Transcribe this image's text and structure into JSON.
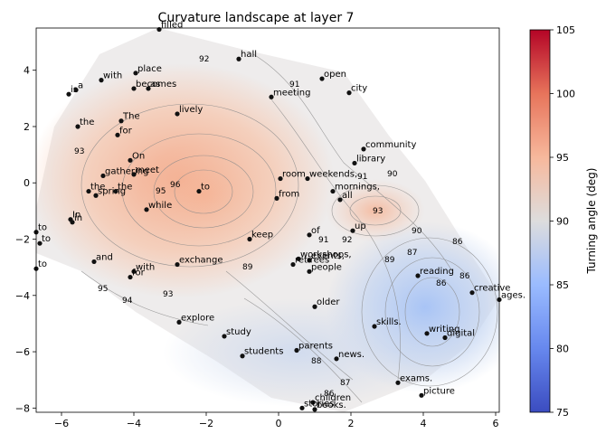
{
  "chart_data": {
    "type": "scatter",
    "title": "Curvature landscape at layer 7",
    "xlabel": "",
    "ylabel": "",
    "xlim": [
      -6.7,
      6.1
    ],
    "ylim": [
      -8.15,
      5.5
    ],
    "x_ticks": [
      -6,
      -4,
      -2,
      0,
      2,
      4,
      6
    ],
    "y_ticks": [
      -8,
      -6,
      -4,
      -2,
      0,
      2,
      4
    ],
    "grid": false,
    "colorbar": {
      "label": "Turning angle (deg)",
      "min": 75,
      "max": 105,
      "ticks": [
        75,
        80,
        85,
        90,
        95,
        100,
        105
      ],
      "colors": [
        "#3b4cc0",
        "#dddddd",
        "#b40426"
      ]
    },
    "contour_levels_printed": [
      "86",
      "87",
      "88",
      "89",
      "90",
      "91",
      "92",
      "93",
      "94",
      "95",
      "96"
    ],
    "points": [
      {
        "label": "filled",
        "x": -3.3,
        "y": 5.45
      },
      {
        "label": "hall",
        "x": -1.1,
        "y": 4.4
      },
      {
        "label": "place",
        "x": -3.95,
        "y": 3.9
      },
      {
        "label": "with",
        "x": -4.9,
        "y": 3.65
      },
      {
        "label": "is",
        "x": -5.8,
        "y": 3.15
      },
      {
        "label": "a",
        "x": -5.6,
        "y": 3.3
      },
      {
        "label": "becomes",
        "x": -4.0,
        "y": 3.35
      },
      {
        "label": "as",
        "x": -3.6,
        "y": 3.35
      },
      {
        "label": "open",
        "x": 1.2,
        "y": 3.7
      },
      {
        "label": "city",
        "x": 1.95,
        "y": 3.2
      },
      {
        "label": "meeting",
        "x": -0.2,
        "y": 3.05
      },
      {
        "label": "lively",
        "x": -2.8,
        "y": 2.45
      },
      {
        "label": "the",
        "x": -5.55,
        "y": 2.0
      },
      {
        "label": "The",
        "x": -4.35,
        "y": 2.2
      },
      {
        "label": "for",
        "x": -4.45,
        "y": 1.7
      },
      {
        "label": "community",
        "x": 2.35,
        "y": 1.2
      },
      {
        "label": "On",
        "x": -4.1,
        "y": 0.8
      },
      {
        "label": "library",
        "x": 2.1,
        "y": 0.7
      },
      {
        "label": "gathering",
        "x": -4.85,
        "y": 0.25
      },
      {
        "label": "meet",
        "x": -4.0,
        "y": 0.3
      },
      {
        "label": "room",
        "x": 0.05,
        "y": 0.15
      },
      {
        "label": "weekends,",
        "x": 0.8,
        "y": 0.15
      },
      {
        "label": "to",
        "x": -2.2,
        "y": -0.3
      },
      {
        "label": "the",
        "x": -5.25,
        "y": -0.3
      },
      {
        "label": "spring",
        "x": -5.05,
        "y": -0.45
      },
      {
        "label": "the",
        "x": -4.5,
        "y": -0.3
      },
      {
        "label": "mornings,",
        "x": 1.5,
        "y": -0.3
      },
      {
        "label": "from",
        "x": -0.05,
        "y": -0.55
      },
      {
        "label": "all",
        "x": 1.7,
        "y": -0.6
      },
      {
        "label": "while",
        "x": -3.65,
        "y": -0.95
      },
      {
        "label": "In",
        "x": -5.75,
        "y": -1.3
      },
      {
        "label": "in",
        "x": -5.7,
        "y": -1.4
      },
      {
        "label": "to",
        "x": -6.7,
        "y": -1.75
      },
      {
        "label": "up",
        "x": 2.05,
        "y": -1.7
      },
      {
        "label": "of",
        "x": 0.85,
        "y": -1.85
      },
      {
        "label": "keep",
        "x": -0.8,
        "y": -2.0
      },
      {
        "label": "to",
        "x": -6.6,
        "y": -2.15
      },
      {
        "label": "workshops,",
        "x": 0.55,
        "y": -2.7
      },
      {
        "label": "events,",
        "x": 0.85,
        "y": -2.75
      },
      {
        "label": "retirees",
        "x": 0.4,
        "y": -2.9
      },
      {
        "label": "and",
        "x": -5.1,
        "y": -2.8
      },
      {
        "label": "exchange",
        "x": -2.8,
        "y": -2.9
      },
      {
        "label": "to",
        "x": -6.7,
        "y": -3.05
      },
      {
        "label": "with",
        "x": -4.0,
        "y": -3.15
      },
      {
        "label": "people",
        "x": 0.85,
        "y": -3.15
      },
      {
        "label": "reading",
        "x": 3.85,
        "y": -3.3
      },
      {
        "label": "for",
        "x": -4.1,
        "y": -3.35
      },
      {
        "label": "creative",
        "x": 5.35,
        "y": -3.9
      },
      {
        "label": "ages.",
        "x": 6.1,
        "y": -4.15
      },
      {
        "label": "older",
        "x": 1.0,
        "y": -4.4
      },
      {
        "label": "explore",
        "x": -2.75,
        "y": -4.95
      },
      {
        "label": "skills.",
        "x": 2.65,
        "y": -5.1
      },
      {
        "label": "study",
        "x": -1.5,
        "y": -5.45
      },
      {
        "label": "writing",
        "x": 4.1,
        "y": -5.35
      },
      {
        "label": "digital",
        "x": 4.6,
        "y": -5.5
      },
      {
        "label": "parents",
        "x": 0.5,
        "y": -5.95
      },
      {
        "label": "students",
        "x": -1.0,
        "y": -6.15
      },
      {
        "label": "news.",
        "x": 1.6,
        "y": -6.25
      },
      {
        "label": "exams.",
        "x": 3.3,
        "y": -7.1
      },
      {
        "label": "picture",
        "x": 3.95,
        "y": -7.55
      },
      {
        "label": "children",
        "x": 0.95,
        "y": -7.8
      },
      {
        "label": "stories",
        "x": 0.65,
        "y": -8.0
      },
      {
        "label": "books.",
        "x": 1.0,
        "y": -8.05
      }
    ]
  }
}
